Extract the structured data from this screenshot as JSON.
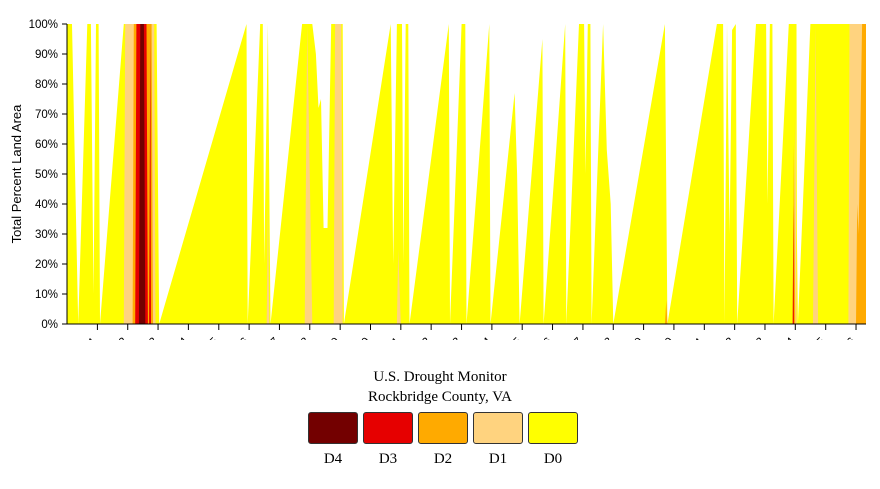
{
  "chart_data": {
    "type": "area",
    "ylabel": "Total Percent Land Area",
    "ylim": [
      0,
      100
    ],
    "y_ticks": [
      "0%",
      "10%",
      "20%",
      "30%",
      "40%",
      "50%",
      "60%",
      "70%",
      "80%",
      "90%",
      "100%"
    ],
    "x_ticks": [
      "2001",
      "2002",
      "2003",
      "2004",
      "2005",
      "2006",
      "2007",
      "2008",
      "2009",
      "2010",
      "2011",
      "2012",
      "2013",
      "2014",
      "2015",
      "2016",
      "2017",
      "2018",
      "2019",
      "2020",
      "2021",
      "2022",
      "2023",
      "2024",
      "2025",
      "2026"
    ],
    "xlim": [
      "2000-01-01",
      "2026-05-01"
    ],
    "stacking": "cumulative (D0 includes D1-D4, D1 includes D2-D4, etc.)",
    "series": [
      {
        "name": "D0",
        "color": "#FFFF00",
        "points": [
          [
            "2000-01-01",
            100
          ],
          [
            "2000-03-01",
            100
          ],
          [
            "2000-05-15",
            0
          ],
          [
            "2000-09-01",
            100
          ],
          [
            "2000-10-15",
            100
          ],
          [
            "2000-11-15",
            10
          ],
          [
            "2000-12-15",
            100
          ],
          [
            "2001-01-15",
            100
          ],
          [
            "2001-02-01",
            0
          ],
          [
            "2001-11-15",
            100
          ],
          [
            "2002-12-15",
            100
          ],
          [
            "2003-01-15",
            0
          ],
          [
            "2005-12-01",
            100
          ],
          [
            "2005-12-15",
            0
          ],
          [
            "2006-05-15",
            100
          ],
          [
            "2006-06-15",
            100
          ],
          [
            "2006-07-01",
            20
          ],
          [
            "2006-08-15",
            100
          ],
          [
            "2006-09-15",
            0
          ],
          [
            "2007-10-01",
            100
          ],
          [
            "2008-02-01",
            100
          ],
          [
            "2008-03-15",
            90
          ],
          [
            "2008-04-15",
            72
          ],
          [
            "2008-05-15",
            75
          ],
          [
            "2008-06-15",
            32
          ],
          [
            "2008-08-01",
            32
          ],
          [
            "2008-09-15",
            100
          ],
          [
            "2009-02-01",
            100
          ],
          [
            "2009-02-15",
            0
          ],
          [
            "2010-09-01",
            100
          ],
          [
            "2010-10-01",
            20
          ],
          [
            "2010-11-15",
            100
          ],
          [
            "2011-01-15",
            100
          ],
          [
            "2011-02-01",
            20
          ],
          [
            "2011-03-01",
            100
          ],
          [
            "2011-04-01",
            100
          ],
          [
            "2011-04-15",
            0
          ],
          [
            "2012-08-01",
            100
          ],
          [
            "2012-08-15",
            0
          ],
          [
            "2013-01-01",
            100
          ],
          [
            "2013-02-15",
            100
          ],
          [
            "2013-03-01",
            0
          ],
          [
            "2013-12-01",
            100
          ],
          [
            "2013-12-15",
            0
          ],
          [
            "2014-10-01",
            77
          ],
          [
            "2014-11-01",
            50
          ],
          [
            "2014-12-01",
            0
          ],
          [
            "2015-09-01",
            95
          ],
          [
            "2015-09-15",
            0
          ],
          [
            "2016-06-01",
            100
          ],
          [
            "2016-06-15",
            0
          ],
          [
            "2016-11-15",
            100
          ],
          [
            "2017-01-15",
            100
          ],
          [
            "2017-02-01",
            50
          ],
          [
            "2017-03-01",
            100
          ],
          [
            "2017-04-01",
            100
          ],
          [
            "2017-04-15",
            0
          ],
          [
            "2017-09-01",
            100
          ],
          [
            "2017-10-15",
            58
          ],
          [
            "2017-12-01",
            40
          ],
          [
            "2018-01-01",
            0
          ],
          [
            "2019-09-15",
            100
          ],
          [
            "2019-10-15",
            0
          ],
          [
            "2021-06-01",
            100
          ],
          [
            "2021-08-15",
            100
          ],
          [
            "2021-09-01",
            0
          ],
          [
            "2021-10-01",
            100
          ],
          [
            "2021-11-01",
            30
          ],
          [
            "2021-12-01",
            98
          ],
          [
            "2022-01-15",
            100
          ],
          [
            "2022-02-01",
            0
          ],
          [
            "2022-09-15",
            100
          ],
          [
            "2023-01-15",
            100
          ],
          [
            "2023-02-01",
            40
          ],
          [
            "2023-03-01",
            100
          ],
          [
            "2023-04-01",
            100
          ],
          [
            "2023-04-15",
            0
          ],
          [
            "2023-10-15",
            100
          ],
          [
            "2024-01-15",
            100
          ],
          [
            "2024-01-20",
            30
          ],
          [
            "2024-02-01",
            0
          ],
          [
            "2024-07-01",
            100
          ],
          [
            "2026-05-01",
            100
          ]
        ]
      },
      {
        "name": "D1",
        "color": "#FFD37F",
        "points": [
          [
            "2000-01-01",
            0
          ],
          [
            "2001-11-15",
            0
          ],
          [
            "2001-12-01",
            100
          ],
          [
            "2002-11-15",
            100
          ],
          [
            "2002-12-01",
            0
          ],
          [
            "2006-08-01",
            0
          ],
          [
            "2006-08-15",
            40
          ],
          [
            "2006-09-01",
            0
          ],
          [
            "2007-11-01",
            0
          ],
          [
            "2007-12-01",
            100
          ],
          [
            "2008-02-01",
            0
          ],
          [
            "2008-10-15",
            0
          ],
          [
            "2008-11-01",
            100
          ],
          [
            "2009-01-15",
            100
          ],
          [
            "2009-02-01",
            0
          ],
          [
            "2010-11-15",
            0
          ],
          [
            "2010-12-01",
            25
          ],
          [
            "2011-01-01",
            0
          ],
          [
            "2023-12-01",
            0
          ],
          [
            "2024-01-01",
            70
          ],
          [
            "2024-01-15",
            0
          ],
          [
            "2024-08-01",
            0
          ],
          [
            "2024-09-01",
            100
          ],
          [
            "2024-10-01",
            0
          ],
          [
            "2025-10-01",
            0
          ],
          [
            "2025-10-15",
            100
          ],
          [
            "2026-05-01",
            100
          ]
        ]
      },
      {
        "name": "D2",
        "color": "#FFAA00",
        "points": [
          [
            "2000-01-01",
            0
          ],
          [
            "2002-03-01",
            0
          ],
          [
            "2002-03-15",
            100
          ],
          [
            "2002-10-15",
            100
          ],
          [
            "2002-11-01",
            0
          ],
          [
            "2019-09-15",
            0
          ],
          [
            "2019-10-01",
            8
          ],
          [
            "2019-10-15",
            0
          ],
          [
            "2023-12-01",
            0
          ],
          [
            "2023-12-15",
            60
          ],
          [
            "2024-01-01",
            0
          ],
          [
            "2026-01-01",
            0
          ],
          [
            "2026-01-15",
            40
          ],
          [
            "2026-02-01",
            30
          ],
          [
            "2026-03-15",
            100
          ],
          [
            "2026-05-01",
            100
          ]
        ]
      },
      {
        "name": "D3",
        "color": "#E60000",
        "points": [
          [
            "2000-01-01",
            0
          ],
          [
            "2002-04-01",
            0
          ],
          [
            "2002-04-15",
            100
          ],
          [
            "2002-08-15",
            100
          ],
          [
            "2002-09-01",
            0
          ],
          [
            "2002-09-15",
            0
          ],
          [
            "2002-10-01",
            100
          ],
          [
            "2002-10-08",
            0
          ],
          [
            "2023-12-01",
            0
          ],
          [
            "2023-12-08",
            40
          ],
          [
            "2023-12-15",
            0
          ],
          [
            "2026-05-01",
            0
          ]
        ]
      },
      {
        "name": "D4",
        "color": "#730000",
        "points": [
          [
            "2000-01-01",
            0
          ],
          [
            "2002-05-15",
            0
          ],
          [
            "2002-06-01",
            100
          ],
          [
            "2002-07-15",
            100
          ],
          [
            "2002-08-01",
            0
          ],
          [
            "2026-05-01",
            0
          ]
        ]
      }
    ],
    "title": [
      "U.S. Drought Monitor",
      "Rockbridge County, VA"
    ],
    "legend": [
      "D4",
      "D3",
      "D2",
      "D1",
      "D0"
    ],
    "legend_placement": "bottom-center"
  },
  "colors": {
    "D4": "#730000",
    "D3": "#E60000",
    "D2": "#FFAA00",
    "D1": "#FFD37F",
    "D0": "#FFFF00"
  }
}
